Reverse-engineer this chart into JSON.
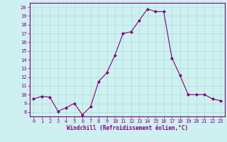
{
  "x": [
    0,
    1,
    2,
    3,
    4,
    5,
    6,
    7,
    8,
    9,
    10,
    11,
    12,
    13,
    14,
    15,
    16,
    17,
    18,
    19,
    20,
    21,
    22,
    23
  ],
  "y": [
    9.5,
    9.8,
    9.7,
    8.1,
    8.5,
    9.0,
    7.7,
    8.6,
    11.5,
    12.5,
    14.5,
    17.0,
    17.2,
    18.5,
    19.8,
    19.5,
    19.5,
    14.2,
    12.2,
    10.0,
    10.0,
    10.0,
    9.5,
    9.3
  ],
  "line_color": "#800080",
  "marker": "D",
  "marker_size": 2,
  "bg_color": "#cff0f0",
  "grid_color": "#aadddd",
  "xlabel": "Windchill (Refroidissement éolien,°C)",
  "xlim": [
    -0.5,
    23.5
  ],
  "ylim": [
    7.5,
    20.5
  ],
  "yticks": [
    8,
    9,
    10,
    11,
    12,
    13,
    14,
    15,
    16,
    17,
    18,
    19,
    20
  ],
  "xticks": [
    0,
    1,
    2,
    3,
    4,
    5,
    6,
    7,
    8,
    9,
    10,
    11,
    12,
    13,
    14,
    15,
    16,
    17,
    18,
    19,
    20,
    21,
    22,
    23
  ],
  "tick_color": "#800080",
  "label_color": "#800080",
  "tick_fontsize": 5.0,
  "xlabel_fontsize": 5.5
}
